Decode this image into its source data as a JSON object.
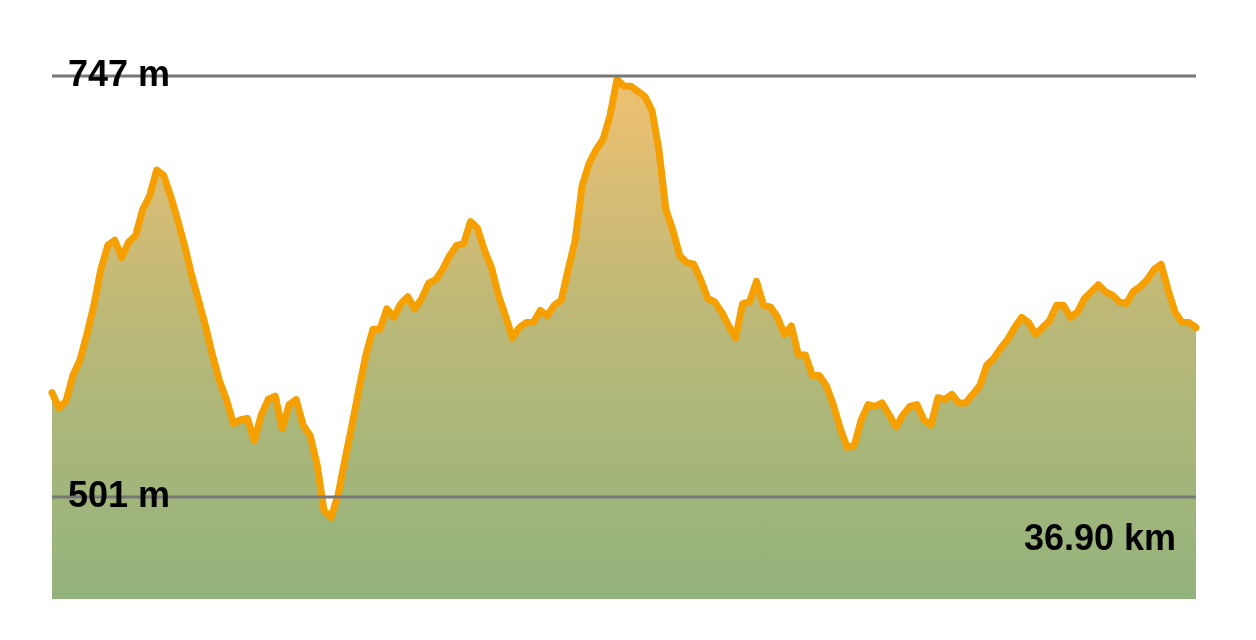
{
  "chart_data": {
    "type": "area",
    "categories": [
      null,
      null,
      null,
      null,
      null,
      null,
      null,
      null,
      null,
      null,
      null,
      null,
      null,
      null,
      null,
      null,
      null,
      null,
      null,
      null,
      null,
      null,
      null,
      null,
      null,
      null,
      null,
      null,
      null,
      null,
      null,
      null,
      null,
      null,
      null,
      null,
      null,
      null,
      null,
      null,
      null,
      null,
      null,
      null,
      null,
      null,
      null,
      null,
      null,
      null,
      null,
      null,
      null,
      null,
      null,
      null,
      null,
      null,
      null,
      null,
      null,
      null,
      null,
      null,
      null,
      null,
      null,
      null,
      null,
      null,
      null,
      null,
      null,
      null,
      null,
      null,
      null,
      null,
      null,
      null,
      null,
      null,
      null,
      null,
      null,
      null,
      null,
      null,
      null,
      null,
      null,
      null,
      null,
      null,
      null,
      null,
      null,
      null,
      null,
      null,
      null,
      null,
      null,
      null,
      null,
      null,
      null,
      null,
      null,
      null,
      null,
      null,
      null,
      null,
      null,
      null,
      null,
      null,
      null,
      null,
      null,
      null,
      null,
      null,
      null,
      null,
      null,
      null,
      null,
      null,
      null,
      null,
      null,
      null,
      null,
      null,
      null,
      null,
      null,
      null,
      null,
      null,
      null,
      null,
      null,
      null,
      null,
      null,
      null,
      null,
      null,
      null,
      null,
      null,
      null,
      null,
      null,
      null,
      null,
      null,
      null,
      null,
      null,
      null,
      null
    ],
    "series": [
      {
        "color": "#f5a000",
        "values": [
          562,
          553,
          557,
          572,
          581,
          596,
          613,
          634,
          648,
          651,
          641,
          650,
          654,
          669,
          677,
          692,
          689,
          677,
          663,
          648,
          631,
          616,
          601,
          584,
          569,
          558,
          544,
          546,
          547,
          534,
          549,
          558,
          560,
          541,
          555,
          558,
          543,
          537,
          520,
          493,
          489,
          502,
          523,
          543,
          564,
          584,
          599,
          599,
          611,
          606,
          614,
          618,
          611,
          617,
          626,
          628,
          634,
          642,
          648,
          649,
          662,
          658,
          645,
          635,
          619,
          607,
          594,
          600,
          603,
          603,
          610,
          607,
          613,
          616,
          634,
          651,
          683,
          696,
          704,
          710,
          724,
          745,
          741,
          741,
          738,
          735,
          727,
          704,
          669,
          657,
          642,
          638,
          637,
          628,
          617,
          615,
          609,
          601,
          594,
          614,
          615,
          627,
          613,
          612,
          606,
          596,
          601,
          584,
          584,
          572,
          572,
          566,
          555,
          541,
          530,
          531,
          546,
          555,
          554,
          556,
          549,
          542,
          549,
          554,
          555,
          546,
          543,
          559,
          558,
          561,
          556,
          556,
          561,
          566,
          578,
          582,
          588,
          593,
          600,
          606,
          603,
          596,
          600,
          604,
          613,
          613,
          606,
          609,
          617,
          621,
          625,
          621,
          619,
          615,
          614,
          621,
          624,
          628,
          634,
          637,
          622,
          609,
          603,
          603,
          600
        ]
      }
    ],
    "ylim": [
      442,
      747
    ],
    "yticks": [
      {
        "value": 747,
        "label": "747 m"
      },
      {
        "value": 501,
        "label": "501 m"
      }
    ],
    "tick_labels": "y",
    "grid": "y",
    "legend": false,
    "annotations": [
      "36.90 km"
    ]
  }
}
